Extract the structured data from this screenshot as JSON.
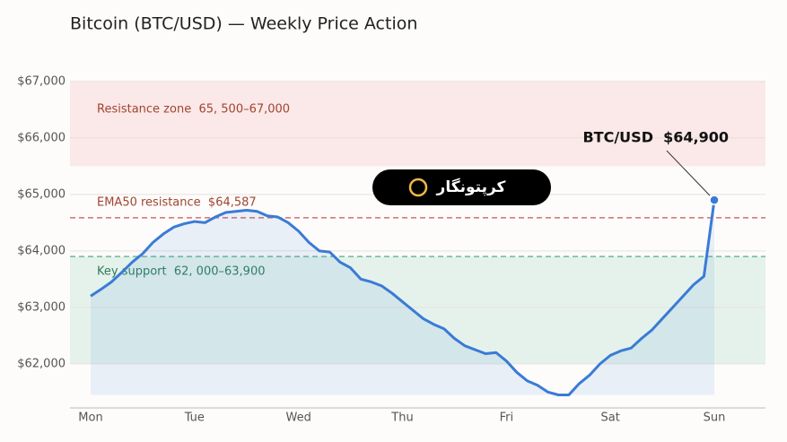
{
  "chart_data": {
    "type": "line",
    "title": "Bitcoin (BTC/USD) — Weekly Price Action",
    "categories": [
      "Mon",
      null,
      null,
      null,
      null,
      null,
      null,
      null,
      null,
      null,
      "Tue",
      null,
      null,
      null,
      null,
      null,
      null,
      null,
      null,
      null,
      "Wed",
      null,
      null,
      null,
      null,
      null,
      null,
      null,
      null,
      null,
      "Thu",
      null,
      null,
      null,
      null,
      null,
      null,
      null,
      null,
      null,
      "Fri",
      null,
      null,
      null,
      null,
      null,
      null,
      null,
      null,
      null,
      "Sat",
      null,
      null,
      null,
      null,
      null,
      null,
      null,
      null,
      null,
      "Sun"
    ],
    "series": [
      {
        "name": "BTC/USD",
        "color": "#3a7bd5",
        "values": [
          63200,
          63320,
          63450,
          63620,
          63800,
          63950,
          64150,
          64300,
          64420,
          64480,
          64520,
          64500,
          64600,
          64680,
          64700,
          64720,
          64700,
          64620,
          64600,
          64500,
          64350,
          64150,
          64000,
          63980,
          63800,
          63700,
          63500,
          63450,
          63380,
          63250,
          63100,
          62950,
          62800,
          62700,
          62620,
          62450,
          62320,
          62250,
          62180,
          62200,
          62050,
          61850,
          61700,
          61620,
          61500,
          61450,
          61450,
          61650,
          61800,
          62000,
          62150,
          62230,
          62280,
          62450,
          62600,
          62800,
          63000,
          63200,
          63400,
          63550,
          64900
        ]
      }
    ],
    "ylim": [
      61220,
      67330
    ],
    "yticks": [
      {
        "value": 62000,
        "label": "$62,000"
      },
      {
        "value": 63000,
        "label": "$63,000"
      },
      {
        "value": 64000,
        "label": "$64,000"
      },
      {
        "value": 65000,
        "label": "$65,000"
      },
      {
        "value": 66000,
        "label": "$66,000"
      },
      {
        "value": 67000,
        "label": "$67,000"
      }
    ],
    "grid": true,
    "bands": [
      {
        "label": "Resistance zone  65, 500–67,000",
        "from": 65500,
        "to": 67000,
        "color": "#fbe8e8",
        "text_color": "#a0452f"
      },
      {
        "label": "Key support  62, 000–63,900",
        "from": 62000,
        "to": 63900,
        "color": "#e5f2ec",
        "text_color": "#2e7d5b"
      }
    ],
    "reference_lines": [
      {
        "label": "EMA50 resistance  $64,587",
        "value": 64587,
        "color": "#d46e6a"
      },
      {
        "value": 63900,
        "color": "#6bb89a"
      }
    ],
    "annotation": "BTC/USD  $64,900",
    "watermark": "کرپتونگار"
  }
}
